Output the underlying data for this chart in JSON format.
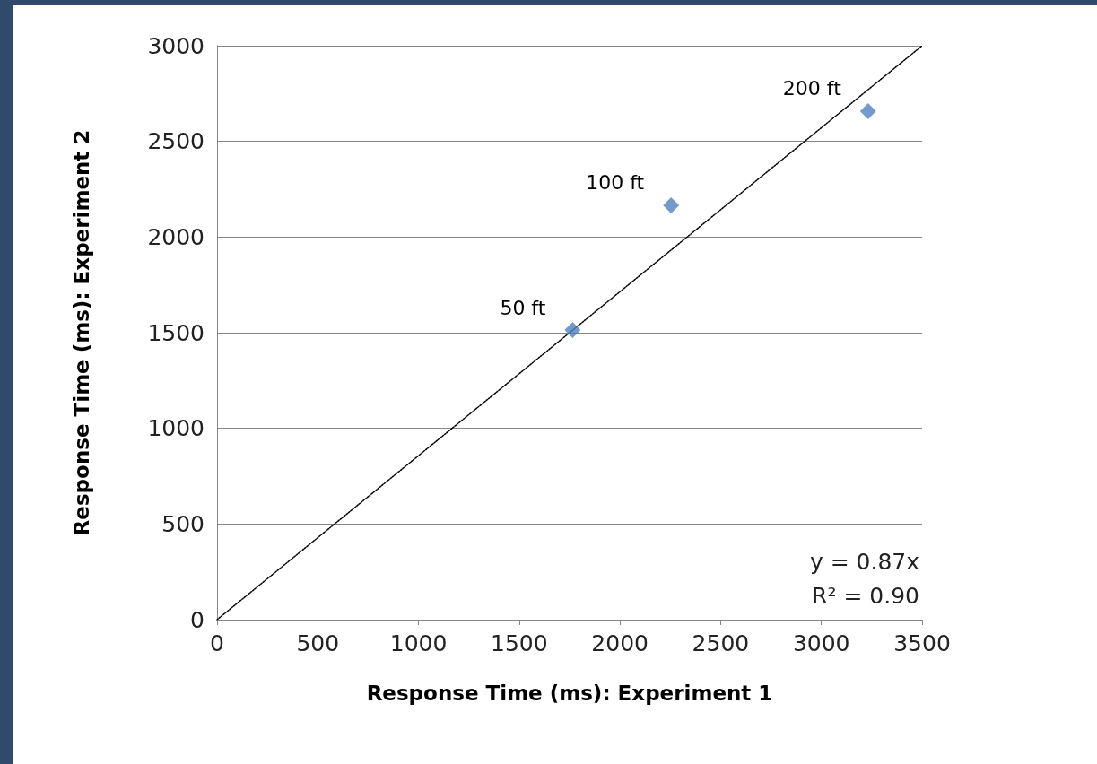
{
  "chart_data": {
    "type": "scatter",
    "xlabel": "Response Time (ms): Experiment 1",
    "ylabel": "Response Time (ms): Experiment 2",
    "series": [
      {
        "color": "#4f81bd",
        "marker": "diamond",
        "x": [
          1765,
          2254,
          3232
        ],
        "values": [
          1514,
          2166,
          2658
        ]
      },
      {
        "type": "line",
        "color": "#000000",
        "marker": "none",
        "line_style": "dotted",
        "x": [
          0,
          3500
        ],
        "values": [
          0,
          3000
        ]
      }
    ],
    "xlim": [
      0,
      3500
    ],
    "xticks": [
      0,
      500,
      1000,
      1500,
      2000,
      2500,
      3000,
      3500
    ],
    "ylim": [
      0,
      3000
    ],
    "yticks": [
      0,
      500,
      1000,
      1500,
      2000,
      2500,
      3000
    ],
    "grid": "y",
    "annotations": [
      {
        "text": "50 ft",
        "x": 1765,
        "y": 1514
      },
      {
        "text": "100 ft",
        "x": 2254,
        "y": 2166
      },
      {
        "text": "200 ft",
        "x": 3232,
        "y": 2658
      },
      "y = 0.87x",
      "R² = 0.90"
    ]
  }
}
